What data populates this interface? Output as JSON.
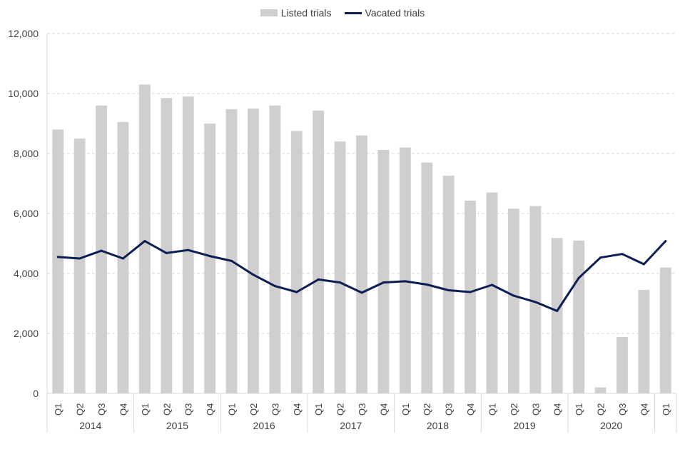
{
  "chart_data": {
    "type": "bar",
    "title": "",
    "xlabel": "",
    "ylabel": "",
    "ylim": [
      0,
      12000
    ],
    "y_ticks": [
      "0",
      "2,000",
      "4,000",
      "6,000",
      "8,000",
      "10,000",
      "12,000"
    ],
    "y_tick_values": [
      0,
      2000,
      4000,
      6000,
      8000,
      10000,
      12000
    ],
    "grid": true,
    "legend_position": "top-center",
    "categories": [
      "Q1",
      "Q2",
      "Q3",
      "Q4",
      "Q1",
      "Q2",
      "Q3",
      "Q4",
      "Q1",
      "Q2",
      "Q3",
      "Q4",
      "Q1",
      "Q2",
      "Q3",
      "Q4",
      "Q1",
      "Q2",
      "Q3",
      "Q4",
      "Q1",
      "Q2",
      "Q3",
      "Q4",
      "Q1",
      "Q2",
      "Q3",
      "Q4",
      "Q1"
    ],
    "year_groups": [
      {
        "label": "2014",
        "count": 4
      },
      {
        "label": "2015",
        "count": 4
      },
      {
        "label": "2016",
        "count": 4
      },
      {
        "label": "2017",
        "count": 4
      },
      {
        "label": "2018",
        "count": 4
      },
      {
        "label": "2019",
        "count": 4
      },
      {
        "label": "2020",
        "count": 4
      },
      {
        "label": "",
        "count": 1
      }
    ],
    "series": [
      {
        "name": "Listed trials",
        "kind": "bar",
        "color": "#d0cece",
        "values": [
          8800,
          8500,
          9600,
          9050,
          10300,
          9850,
          9900,
          9000,
          9480,
          9500,
          9600,
          8750,
          9430,
          8400,
          8600,
          8120,
          8200,
          7700,
          7260,
          6430,
          6700,
          6160,
          6250,
          5180,
          5100,
          200,
          1880,
          3450,
          4200
        ]
      },
      {
        "name": "Vacated trials",
        "kind": "line",
        "color": "#0b1f55",
        "values": [
          4550,
          4500,
          4760,
          4500,
          5080,
          4680,
          4780,
          4580,
          4420,
          3960,
          3580,
          3380,
          3800,
          3700,
          3360,
          3700,
          3740,
          3630,
          3440,
          3380,
          3620,
          3260,
          3050,
          2750,
          3850,
          4530,
          4650,
          4310,
          5080
        ]
      }
    ]
  }
}
